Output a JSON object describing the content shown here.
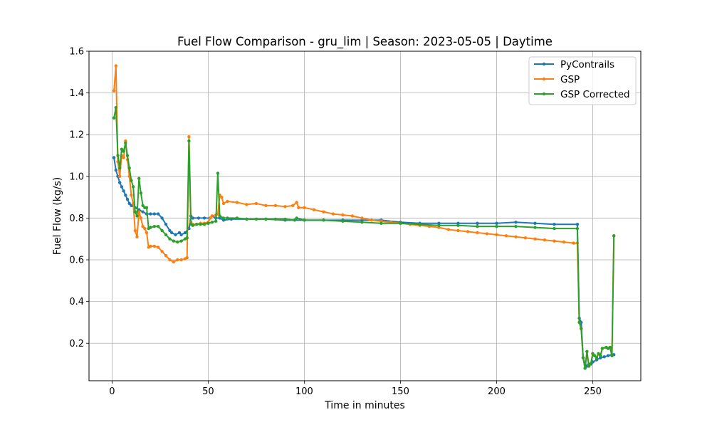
{
  "chart_data": {
    "type": "line",
    "title": "Fuel Flow Comparison - gru_lim | Season: 2023-05-05 | Daytime",
    "xlabel": "Time in minutes",
    "ylabel": "Fuel Flow (kg/s)",
    "xlim": [
      -12,
      275
    ],
    "ylim": [
      0.02,
      1.6
    ],
    "x_ticks": [
      0,
      50,
      100,
      150,
      200,
      250
    ],
    "y_ticks": [
      0.2,
      0.4,
      0.6,
      0.8,
      1.0,
      1.2,
      1.4,
      1.6
    ],
    "x_tick_labels": [
      "0",
      "50",
      "100",
      "150",
      "200",
      "250"
    ],
    "y_tick_labels": [
      "0.2",
      "0.4",
      "0.6",
      "0.8",
      "1.0",
      "1.2",
      "1.4",
      "1.6"
    ],
    "grid": true,
    "legend_position": "top-right",
    "series": [
      {
        "name": "PyContrails",
        "color": "#1f77b4",
        "points": [
          [
            1,
            1.09
          ],
          [
            2,
            1.03
          ],
          [
            3,
            1.0
          ],
          [
            4,
            0.97
          ],
          [
            5,
            0.95
          ],
          [
            6,
            0.93
          ],
          [
            7,
            0.91
          ],
          [
            8,
            0.89
          ],
          [
            9,
            0.87
          ],
          [
            10,
            0.86
          ],
          [
            12,
            0.85
          ],
          [
            14,
            0.84
          ],
          [
            16,
            0.83
          ],
          [
            18,
            0.82
          ],
          [
            20,
            0.82
          ],
          [
            22,
            0.82
          ],
          [
            24,
            0.82
          ],
          [
            26,
            0.8
          ],
          [
            28,
            0.77
          ],
          [
            30,
            0.74
          ],
          [
            31,
            0.73
          ],
          [
            33,
            0.72
          ],
          [
            35,
            0.73
          ],
          [
            36,
            0.72
          ],
          [
            38,
            0.73
          ],
          [
            40,
            0.75
          ],
          [
            41,
            0.81
          ],
          [
            42,
            0.8
          ],
          [
            45,
            0.8
          ],
          [
            48,
            0.8
          ],
          [
            51,
            0.8
          ],
          [
            52,
            0.81
          ],
          [
            54,
            0.8
          ],
          [
            56,
            0.8
          ],
          [
            58,
            0.79
          ],
          [
            62,
            0.795
          ],
          [
            70,
            0.795
          ],
          [
            80,
            0.795
          ],
          [
            90,
            0.79
          ],
          [
            100,
            0.79
          ],
          [
            110,
            0.79
          ],
          [
            120,
            0.79
          ],
          [
            130,
            0.79
          ],
          [
            140,
            0.79
          ],
          [
            150,
            0.78
          ],
          [
            160,
            0.775
          ],
          [
            170,
            0.775
          ],
          [
            180,
            0.775
          ],
          [
            190,
            0.775
          ],
          [
            200,
            0.775
          ],
          [
            210,
            0.78
          ],
          [
            220,
            0.775
          ],
          [
            230,
            0.77
          ],
          [
            242,
            0.77
          ],
          [
            243,
            0.32
          ],
          [
            244,
            0.3
          ],
          [
            245,
            0.13
          ],
          [
            246,
            0.1
          ],
          [
            247,
            0.09
          ],
          [
            248,
            0.1
          ],
          [
            250,
            0.11
          ],
          [
            252,
            0.12
          ],
          [
            254,
            0.13
          ],
          [
            256,
            0.135
          ],
          [
            258,
            0.14
          ],
          [
            260,
            0.145
          ],
          [
            261,
            0.145
          ]
        ]
      },
      {
        "name": "GSP",
        "color": "#ff7f0e",
        "points": [
          [
            1,
            1.41
          ],
          [
            2,
            1.53
          ],
          [
            3,
            1.07
          ],
          [
            4,
            1.0
          ],
          [
            5,
            1.1
          ],
          [
            6,
            1.09
          ],
          [
            7,
            1.17
          ],
          [
            8,
            1.08
          ],
          [
            9,
            1.0
          ],
          [
            10,
            0.91
          ],
          [
            11,
            0.87
          ],
          [
            12,
            0.74
          ],
          [
            13,
            0.71
          ],
          [
            14,
            0.83
          ],
          [
            15,
            0.8
          ],
          [
            16,
            0.76
          ],
          [
            17,
            0.75
          ],
          [
            18,
            0.73
          ],
          [
            19,
            0.66
          ],
          [
            20,
            0.665
          ],
          [
            22,
            0.665
          ],
          [
            24,
            0.66
          ],
          [
            26,
            0.64
          ],
          [
            28,
            0.62
          ],
          [
            30,
            0.6
          ],
          [
            32,
            0.59
          ],
          [
            34,
            0.6
          ],
          [
            36,
            0.6
          ],
          [
            38,
            0.605
          ],
          [
            39,
            0.61
          ],
          [
            40,
            1.19
          ],
          [
            41,
            0.78
          ],
          [
            42,
            0.77
          ],
          [
            44,
            0.77
          ],
          [
            46,
            0.775
          ],
          [
            48,
            0.775
          ],
          [
            50,
            0.78
          ],
          [
            51,
            0.8
          ],
          [
            52,
            0.81
          ],
          [
            54,
            0.815
          ],
          [
            55,
            0.82
          ],
          [
            56,
            0.91
          ],
          [
            57,
            0.9
          ],
          [
            58,
            0.87
          ],
          [
            60,
            0.88
          ],
          [
            65,
            0.875
          ],
          [
            70,
            0.865
          ],
          [
            75,
            0.87
          ],
          [
            80,
            0.86
          ],
          [
            85,
            0.86
          ],
          [
            90,
            0.855
          ],
          [
            94,
            0.86
          ],
          [
            96,
            0.875
          ],
          [
            97,
            0.85
          ],
          [
            100,
            0.85
          ],
          [
            105,
            0.84
          ],
          [
            110,
            0.83
          ],
          [
            115,
            0.82
          ],
          [
            120,
            0.815
          ],
          [
            125,
            0.81
          ],
          [
            130,
            0.8
          ],
          [
            135,
            0.79
          ],
          [
            140,
            0.785
          ],
          [
            145,
            0.78
          ],
          [
            150,
            0.775
          ],
          [
            155,
            0.77
          ],
          [
            160,
            0.765
          ],
          [
            165,
            0.76
          ],
          [
            170,
            0.755
          ],
          [
            175,
            0.745
          ],
          [
            180,
            0.74
          ],
          [
            185,
            0.735
          ],
          [
            190,
            0.73
          ],
          [
            195,
            0.725
          ],
          [
            200,
            0.72
          ],
          [
            205,
            0.715
          ],
          [
            210,
            0.71
          ],
          [
            215,
            0.705
          ],
          [
            220,
            0.7
          ],
          [
            225,
            0.695
          ],
          [
            230,
            0.69
          ],
          [
            235,
            0.685
          ],
          [
            240,
            0.68
          ],
          [
            242,
            0.68
          ],
          [
            243,
            0.3
          ],
          [
            244,
            0.27
          ],
          [
            245,
            0.13
          ],
          [
            246,
            0.08
          ],
          [
            247,
            0.16
          ],
          [
            248,
            0.09
          ],
          [
            249,
            0.1
          ],
          [
            250,
            0.15
          ],
          [
            251,
            0.14
          ],
          [
            252,
            0.13
          ],
          [
            253,
            0.15
          ],
          [
            254,
            0.14
          ],
          [
            255,
            0.175
          ],
          [
            257,
            0.18
          ],
          [
            258,
            0.175
          ],
          [
            259,
            0.18
          ],
          [
            260,
            0.14
          ],
          [
            261,
            0.715
          ]
        ]
      },
      {
        "name": "GSP Corrected",
        "color": "#2ca02c",
        "points": [
          [
            1,
            1.28
          ],
          [
            2,
            1.33
          ],
          [
            3,
            1.1
          ],
          [
            4,
            1.04
          ],
          [
            5,
            1.13
          ],
          [
            6,
            1.12
          ],
          [
            7,
            1.16
          ],
          [
            8,
            1.1
          ],
          [
            9,
            1.04
          ],
          [
            10,
            0.98
          ],
          [
            11,
            0.95
          ],
          [
            12,
            0.83
          ],
          [
            13,
            0.81
          ],
          [
            14,
            0.99
          ],
          [
            15,
            0.92
          ],
          [
            16,
            0.86
          ],
          [
            17,
            0.85
          ],
          [
            18,
            0.85
          ],
          [
            19,
            0.75
          ],
          [
            20,
            0.755
          ],
          [
            22,
            0.76
          ],
          [
            24,
            0.76
          ],
          [
            26,
            0.74
          ],
          [
            28,
            0.72
          ],
          [
            30,
            0.7
          ],
          [
            32,
            0.69
          ],
          [
            34,
            0.685
          ],
          [
            36,
            0.69
          ],
          [
            38,
            0.7
          ],
          [
            39,
            0.705
          ],
          [
            40,
            1.17
          ],
          [
            41,
            0.77
          ],
          [
            42,
            0.765
          ],
          [
            44,
            0.77
          ],
          [
            46,
            0.77
          ],
          [
            48,
            0.77
          ],
          [
            50,
            0.775
          ],
          [
            52,
            0.78
          ],
          [
            54,
            0.785
          ],
          [
            55,
            1.015
          ],
          [
            56,
            0.81
          ],
          [
            58,
            0.8
          ],
          [
            60,
            0.8
          ],
          [
            65,
            0.8
          ],
          [
            70,
            0.795
          ],
          [
            75,
            0.795
          ],
          [
            80,
            0.795
          ],
          [
            85,
            0.795
          ],
          [
            90,
            0.795
          ],
          [
            95,
            0.79
          ],
          [
            96,
            0.8
          ],
          [
            100,
            0.79
          ],
          [
            110,
            0.79
          ],
          [
            120,
            0.785
          ],
          [
            130,
            0.78
          ],
          [
            140,
            0.775
          ],
          [
            150,
            0.775
          ],
          [
            160,
            0.77
          ],
          [
            170,
            0.765
          ],
          [
            180,
            0.765
          ],
          [
            190,
            0.76
          ],
          [
            200,
            0.76
          ],
          [
            210,
            0.76
          ],
          [
            220,
            0.755
          ],
          [
            230,
            0.75
          ],
          [
            242,
            0.75
          ],
          [
            243,
            0.3
          ],
          [
            244,
            0.27
          ],
          [
            245,
            0.13
          ],
          [
            246,
            0.08
          ],
          [
            247,
            0.16
          ],
          [
            248,
            0.09
          ],
          [
            249,
            0.1
          ],
          [
            250,
            0.15
          ],
          [
            251,
            0.14
          ],
          [
            252,
            0.13
          ],
          [
            253,
            0.15
          ],
          [
            254,
            0.14
          ],
          [
            255,
            0.175
          ],
          [
            257,
            0.18
          ],
          [
            258,
            0.175
          ],
          [
            259,
            0.18
          ],
          [
            260,
            0.14
          ],
          [
            261,
            0.715
          ]
        ]
      }
    ]
  }
}
